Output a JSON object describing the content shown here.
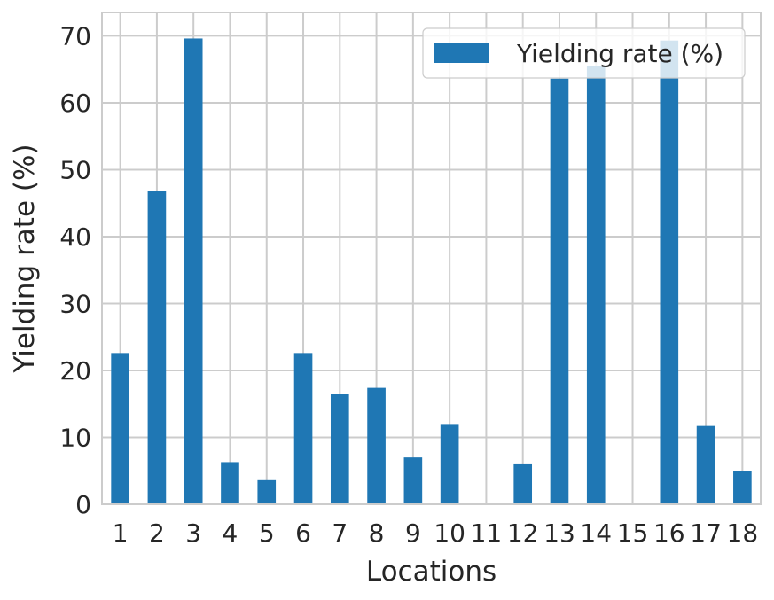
{
  "chart_data": {
    "type": "bar",
    "categories": [
      "1",
      "2",
      "3",
      "4",
      "5",
      "6",
      "7",
      "8",
      "9",
      "10",
      "11",
      "12",
      "13",
      "14",
      "15",
      "16",
      "17",
      "18"
    ],
    "series": [
      {
        "name": "Yielding rate (%)",
        "values": [
          22.6,
          46.8,
          69.6,
          6.3,
          3.6,
          22.6,
          16.5,
          17.4,
          7.0,
          12.0,
          0,
          6.1,
          63.6,
          65.5,
          0,
          69.3,
          11.7,
          5.0
        ]
      }
    ],
    "xlabel": "Locations",
    "ylabel": "Yielding rate (%)",
    "ylim": [
      0,
      73.5
    ],
    "yticks": [
      0,
      10,
      20,
      30,
      40,
      50,
      60,
      70
    ],
    "grid": true,
    "legend_position": "top-right",
    "bar_color": "#1f77b4",
    "grid_color": "#cccccc",
    "spine_color": "#cccccc"
  }
}
